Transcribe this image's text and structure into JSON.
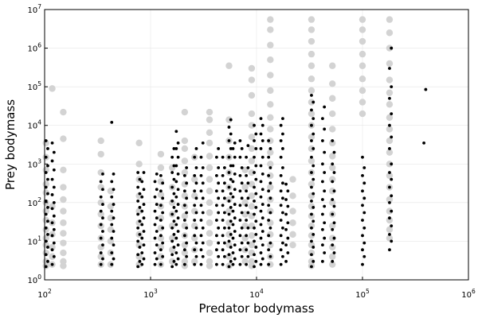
{
  "chart_data": {
    "type": "scatter",
    "xscale": "log",
    "yscale": "log",
    "xlabel": "Predator bodymass",
    "ylabel": "Prey bodymass",
    "xlim": [
      100,
      1000000
    ],
    "ylim": [
      1,
      10000000
    ],
    "grid": true,
    "legend": "none",
    "x_ticks": [
      {
        "base": "10",
        "exp": "2",
        "value": 100
      },
      {
        "base": "10",
        "exp": "3",
        "value": 1000
      },
      {
        "base": "10",
        "exp": "4",
        "value": 10000
      },
      {
        "base": "10",
        "exp": "5",
        "value": 100000
      },
      {
        "base": "10",
        "exp": "6",
        "value": 1000000
      }
    ],
    "y_ticks": [
      {
        "base": "10",
        "exp": "0",
        "value": 1
      },
      {
        "base": "10",
        "exp": "1",
        "value": 10
      },
      {
        "base": "10",
        "exp": "2",
        "value": 100
      },
      {
        "base": "10",
        "exp": "3",
        "value": 1000
      },
      {
        "base": "10",
        "exp": "4",
        "value": 10000
      },
      {
        "base": "10",
        "exp": "5",
        "value": 100000
      },
      {
        "base": "10",
        "exp": "6",
        "value": 1000000
      },
      {
        "base": "10",
        "exp": "7",
        "value": 10000000
      }
    ],
    "series": [
      {
        "color": "#d3d3d3",
        "marker": "large-circle",
        "columns": [
          {
            "x": 103,
            "y": [
              2.3,
              3,
              5,
              8,
              12,
              20,
              35,
              60,
              100,
              180,
              300,
              700,
              1500,
              3500
            ]
          },
          {
            "x": 118,
            "y": [
              2.5,
              4,
              7,
              15,
              30,
              80,
              90000
            ]
          },
          {
            "x": 150,
            "y": [
              2.3,
              3,
              5,
              9,
              16,
              30,
              60,
              120,
              250,
              700,
              4500,
              22000
            ]
          },
          {
            "x": 340,
            "y": [
              2.5,
              4,
              7,
              12,
              25,
              50,
              100,
              250,
              600,
              1800,
              4000
            ]
          },
          {
            "x": 420,
            "y": [
              2.5,
              5,
              10,
              20,
              40,
              80,
              200
            ]
          },
          {
            "x": 780,
            "y": [
              2.5,
              4,
              8,
              15,
              30,
              60,
              150,
              400,
              1000,
              3500
            ]
          },
          {
            "x": 1250,
            "y": [
              2.5,
              4,
              7,
              12,
              22,
              40,
              80,
              160,
              350,
              800,
              1800
            ]
          },
          {
            "x": 1600,
            "y": [
              3,
              6,
              12,
              25,
              50,
              100,
              250,
              800
            ]
          },
          {
            "x": 2100,
            "y": [
              2.3,
              3,
              5,
              8,
              14,
              25,
              45,
              80,
              150,
              300,
              600,
              1200,
              2500,
              4000,
              22000
            ]
          },
          {
            "x": 2600,
            "y": [
              3,
              6,
              12,
              25,
              60,
              150,
              400,
              1500
            ]
          },
          {
            "x": 3600,
            "y": [
              2.3,
              3,
              5,
              9,
              16,
              30,
              55,
              100,
              200,
              400,
              800,
              1600,
              3500,
              6500,
              14000,
              22000
            ]
          },
          {
            "x": 5500,
            "y": [
              2.3,
              4,
              8,
              15,
              30,
              60,
              120,
              250,
              600,
              1500,
              4000,
              14000,
              350000
            ]
          },
          {
            "x": 7800,
            "y": [
              3,
              6,
              12,
              25,
              50,
              100,
              250,
              700
            ]
          },
          {
            "x": 9000,
            "y": [
              2.3,
              3,
              5,
              8,
              14,
              25,
              45,
              80,
              150,
              300,
              600,
              1200,
              2500,
              5000,
              10000,
              20000,
              60000,
              150000,
              300000
            ]
          },
          {
            "x": 13500,
            "y": [
              2.5,
              4,
              8,
              15,
              30,
              60,
              120,
              250,
              500,
              1000,
              2000,
              4000,
              8000,
              16000,
              35000,
              80000,
              200000,
              500000,
              1200000,
              3000000,
              5500000
            ]
          },
          {
            "x": 22000,
            "y": [
              8,
              15,
              30,
              60,
              150,
              400
            ]
          },
          {
            "x": 33000,
            "y": [
              2.3,
              3,
              5,
              8,
              14,
              25,
              45,
              80,
              150,
              300,
              600,
              1200,
              2500,
              5000,
              10000,
              20000,
              40000,
              80000,
              160000,
              350000,
              700000,
              1500000,
              3000000,
              5500000
            ]
          },
          {
            "x": 52000,
            "y": [
              2.5,
              4,
              7,
              12,
              25,
              50,
              100,
              200,
              400,
              800,
              1600,
              3500,
              8000,
              20000,
              50000,
              120000,
              350000
            ]
          },
          {
            "x": 100000,
            "y": [
              20000,
              40000,
              80000,
              160000,
              350000,
              700000,
              1500000,
              3000000,
              5500000
            ]
          },
          {
            "x": 180000,
            "y": [
              12,
              20,
              35,
              60,
              120,
              250,
              500,
              1000,
              2000,
              4000,
              8000,
              16000,
              35000,
              70000,
              150000,
              400000,
              1000000,
              2500000,
              5500000
            ]
          }
        ]
      },
      {
        "color": "#000000",
        "marker": "small-dot",
        "columns": [
          {
            "x": 103,
            "y": [
              2.2,
              3,
              4.5,
              7,
              10,
              15,
              22,
              33,
              50,
              75,
              110,
              170,
              250,
              400,
              600,
              900,
              1500,
              2500,
              4000
            ]
          },
          {
            "x": 118,
            "y": [
              2.5,
              4,
              6,
              9,
              14,
              20,
              30,
              45,
              70,
              100,
              160,
              250,
              400,
              700,
              1200,
              2000,
              3500
            ]
          },
          {
            "x": 340,
            "y": [
              2.5,
              3.5,
              5,
              8,
              12,
              18,
              27,
              40,
              60,
              90,
              140,
              220,
              350,
              550
            ]
          },
          {
            "x": 430,
            "y": [
              2.5,
              3.5,
              5,
              8,
              12,
              18,
              27,
              40,
              60,
              90,
              140,
              220,
              350,
              550,
              12000
            ]
          },
          {
            "x": 760,
            "y": [
              2.2,
              3,
              4.5,
              7,
              10,
              15,
              22,
              33,
              50,
              75,
              110,
              170,
              250,
              400,
              600
            ]
          },
          {
            "x": 830,
            "y": [
              2.5,
              3.5,
              5,
              8,
              12,
              18,
              27,
              40,
              60,
              90,
              140,
              220,
              350,
              600
            ]
          },
          {
            "x": 1100,
            "y": [
              2.5,
              3.5,
              5,
              8,
              12,
              18,
              27,
              40,
              60,
              90,
              140,
              220,
              350,
              550
            ]
          },
          {
            "x": 1250,
            "y": [
              2.5,
              4,
              6,
              9,
              14,
              22,
              35,
              55,
              85,
              130,
              200,
              320,
              500
            ]
          },
          {
            "x": 1600,
            "y": [
              2.2,
              3,
              4.5,
              7,
              10,
              15,
              22,
              33,
              50,
              75,
              110,
              170,
              250,
              400,
              600,
              900,
              1500,
              2500
            ]
          },
          {
            "x": 1750,
            "y": [
              2.5,
              3.5,
              5,
              8,
              12,
              18,
              27,
              40,
              60,
              90,
              140,
              220,
              350,
              550,
              900,
              1500,
              2500,
              3500,
              7000
            ]
          },
          {
            "x": 2100,
            "y": [
              2.5,
              4,
              6,
              9,
              14,
              22,
              35,
              55,
              85,
              130,
              200,
              320,
              500,
              800
            ]
          },
          {
            "x": 2600,
            "y": [
              2.5,
              4,
              6,
              9,
              14,
              22,
              35,
              55,
              85,
              130,
              200,
              320,
              500,
              800,
              1500,
              2500
            ]
          },
          {
            "x": 3000,
            "y": [
              2.5,
              4,
              6,
              9,
              14,
              22,
              35,
              55,
              85,
              130,
              200,
              320,
              500,
              800,
              1500,
              3500
            ]
          },
          {
            "x": 4200,
            "y": [
              2.5,
              4,
              6,
              9,
              14,
              22,
              35,
              55,
              85,
              130,
              200,
              320,
              500,
              800,
              1500,
              2500
            ]
          },
          {
            "x": 4800,
            "y": [
              2.5,
              4,
              6,
              9,
              14,
              22,
              35,
              55,
              85,
              130,
              200,
              320,
              500,
              800,
              1500
            ]
          },
          {
            "x": 5500,
            "y": [
              2.2,
              3,
              4.5,
              7,
              10,
              15,
              22,
              33,
              50,
              75,
              110,
              170,
              250,
              400,
              600,
              900,
              1500,
              2500,
              4000,
              6000,
              9000,
              14000
            ]
          },
          {
            "x": 6000,
            "y": [
              2.5,
              3.5,
              5,
              8,
              12,
              18,
              27,
              40,
              60,
              90,
              140,
              220,
              350,
              550,
              900,
              1500,
              2500,
              3500
            ]
          },
          {
            "x": 7000,
            "y": [
              2.5,
              4,
              6,
              9,
              14,
              22,
              35,
              55,
              85,
              130,
              200,
              320,
              500,
              800,
              1500,
              2500,
              4000
            ]
          },
          {
            "x": 8000,
            "y": [
              2.5,
              4,
              6,
              9,
              14,
              22,
              35,
              55,
              85,
              130,
              200,
              320,
              500,
              800,
              1500,
              3000
            ]
          },
          {
            "x": 9500,
            "y": [
              2.2,
              3,
              4.5,
              7,
              10,
              15,
              22,
              33,
              50,
              75,
              110,
              170,
              250,
              400,
              600,
              900,
              1500,
              2500,
              4000,
              6000,
              10000
            ]
          },
          {
            "x": 11000,
            "y": [
              2.5,
              3.5,
              5,
              8,
              12,
              18,
              27,
              40,
              60,
              90,
              140,
              220,
              350,
              550,
              900,
              1500,
              2500,
              4000,
              6000,
              10000,
              15000
            ]
          },
          {
            "x": 13000,
            "y": [
              2.5,
              4,
              6,
              9,
              14,
              22,
              35,
              55,
              85,
              130,
              200,
              320,
              500,
              800,
              1500,
              2500,
              4000
            ]
          },
          {
            "x": 17000,
            "y": [
              2.5,
              4,
              6,
              9,
              14,
              22,
              35,
              55,
              85,
              130,
              200,
              320,
              500,
              800,
              1500,
              2500,
              4000,
              6000,
              10000,
              15000
            ]
          },
          {
            "x": 19000,
            "y": [
              3,
              5,
              8,
              12,
              20,
              30,
              50,
              80,
              120,
              200,
              300
            ]
          },
          {
            "x": 33000,
            "y": [
              2.2,
              3,
              4.5,
              7,
              10,
              15,
              22,
              33,
              50,
              75,
              110,
              170,
              250,
              400,
              600,
              900,
              1500,
              2500,
              4000,
              6000,
              10000,
              15000,
              25000,
              40000,
              60000
            ]
          },
          {
            "x": 42000,
            "y": [
              3,
              5,
              8,
              12,
              20,
              30,
              50,
              80,
              120,
              200,
              350,
              600,
              1000,
              2000,
              4000,
              8000,
              15000,
              30000
            ]
          },
          {
            "x": 52000,
            "y": [
              3,
              5,
              8,
              12,
              20,
              30,
              50,
              80,
              120,
              200,
              350,
              600,
              1000,
              2000,
              4000
            ]
          },
          {
            "x": 100000,
            "y": [
              2.5,
              4,
              6,
              9,
              14,
              22,
              35,
              55,
              85,
              130,
              200,
              320,
              500,
              800,
              1500
            ]
          },
          {
            "x": 180000,
            "y": [
              6,
              10,
              15,
              25,
              40,
              60,
              100,
              150,
              250,
              400,
              600,
              1000,
              2500,
              5000,
              10000,
              20000,
              50000,
              100000,
              300000,
              1000000
            ]
          },
          {
            "x": 380000,
            "y": [
              3500,
              85000
            ]
          }
        ]
      }
    ]
  }
}
